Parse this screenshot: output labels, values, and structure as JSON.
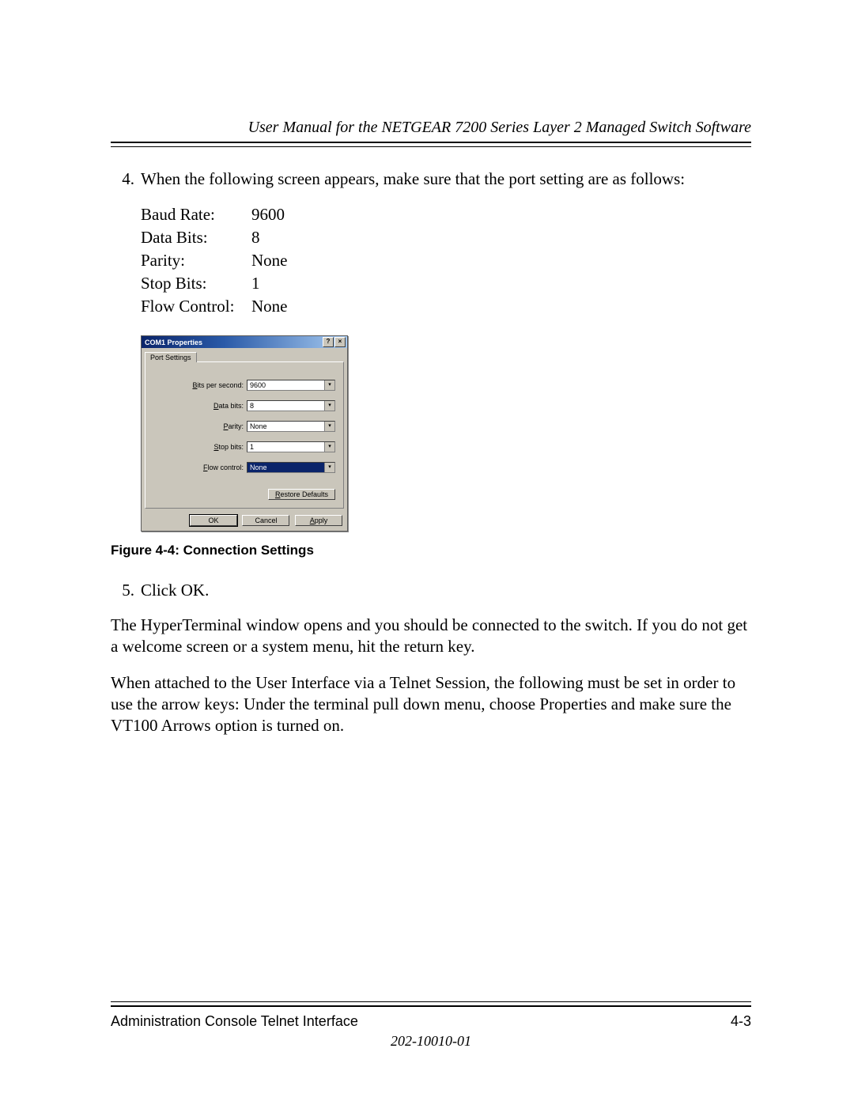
{
  "header": {
    "title": "User Manual for the NETGEAR 7200 Series Layer 2 Managed Switch Software"
  },
  "step4": {
    "number": "4.",
    "text": "When the following screen appears, make sure that the port setting are as follows:"
  },
  "settings": {
    "rows": [
      {
        "label": "Baud Rate:",
        "value": "9600"
      },
      {
        "label": "Data Bits:",
        "value": "8"
      },
      {
        "label": "Parity:",
        "value": "None"
      },
      {
        "label": "Stop Bits:",
        "value": "1"
      },
      {
        "label": "Flow Control:",
        "value": "None"
      }
    ]
  },
  "dialog": {
    "title": "COM1 Properties",
    "help_glyph": "?",
    "close_glyph": "×",
    "tab": "Port Settings",
    "fields": {
      "bps": {
        "hotkey": "B",
        "rest": "its per second:",
        "value": "9600",
        "selected": false
      },
      "data": {
        "hotkey": "D",
        "rest": "ata bits:",
        "value": "8",
        "selected": false
      },
      "parity": {
        "hotkey": "P",
        "rest": "arity:",
        "value": "None",
        "selected": false
      },
      "stop": {
        "hotkey": "S",
        "rest": "top bits:",
        "value": "1",
        "selected": false
      },
      "flow": {
        "hotkey": "F",
        "rest": "low control:",
        "value": "None",
        "selected": true
      }
    },
    "restore": {
      "hotkey": "R",
      "rest": "estore Defaults"
    },
    "ok": "OK",
    "cancel": "Cancel",
    "apply": {
      "hotkey": "A",
      "rest": "pply"
    }
  },
  "figure_caption": "Figure 4-4:  Connection Settings",
  "step5": {
    "number": "5.",
    "text": "Click OK."
  },
  "para1": "The HyperTerminal window opens and you should be connected to the switch. If you do not get a welcome screen or a system menu, hit the return key.",
  "para2": "When attached to the User Interface via a Telnet Session, the following must be set in order to use the arrow keys: Under the terminal pull down menu, choose Properties and make sure the VT100 Arrows option is turned on.",
  "footer": {
    "left": "Administration Console Telnet Interface",
    "right": "4-3",
    "docnum": "202-10010-01"
  },
  "style": {
    "titlebar_gradient_start": "#0a246a",
    "titlebar_gradient_end": "#a6caf0",
    "dialog_face": "#cac6bb",
    "page_bg": "#ffffff",
    "text_color": "#000000"
  }
}
